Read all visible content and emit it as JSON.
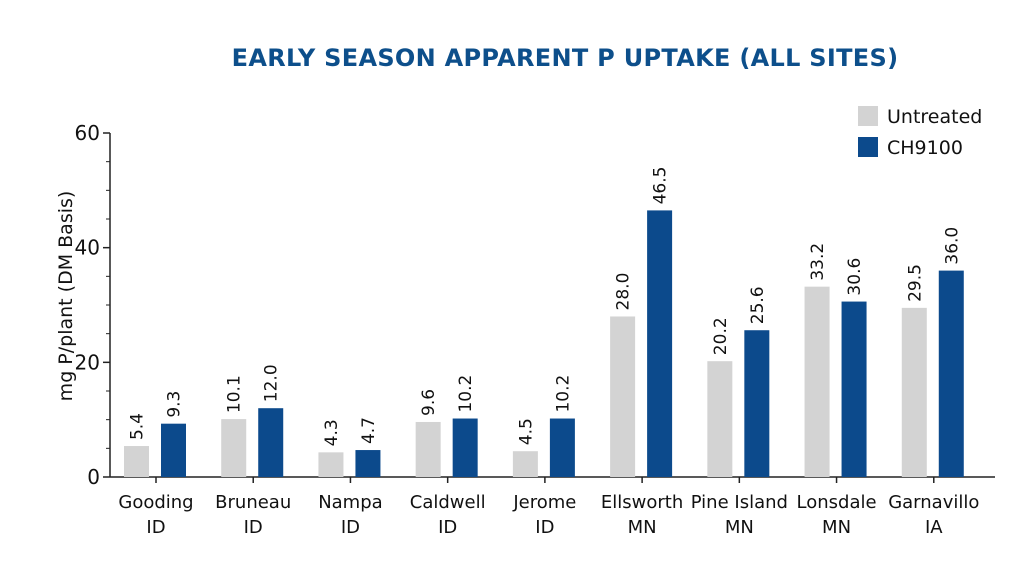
{
  "chart_data": {
    "type": "bar",
    "title": "EARLY SEASON APPARENT P UPTAKE (ALL SITES)",
    "xlabel": "",
    "ylabel": "mg P/plant (DM Basis)",
    "ylim": [
      0,
      60
    ],
    "yticks": [
      0,
      20,
      40,
      60
    ],
    "grid": false,
    "legend_position": "top-right",
    "categories": [
      [
        "Gooding",
        "ID"
      ],
      [
        "Bruneau",
        "ID"
      ],
      [
        "Nampa",
        "ID"
      ],
      [
        "Caldwell",
        "ID"
      ],
      [
        "Jerome",
        "ID"
      ],
      [
        "Ellsworth",
        "MN"
      ],
      [
        "Pine Island",
        "MN"
      ],
      [
        "Lonsdale",
        "MN"
      ],
      [
        "Garnavillo",
        "IA"
      ]
    ],
    "series": [
      {
        "name": "Untreated",
        "color": "#d3d3d3",
        "values": [
          5.4,
          10.1,
          4.3,
          9.6,
          4.5,
          28.0,
          20.2,
          33.2,
          29.5
        ],
        "labels": [
          "5.4",
          "10.1",
          "4.3",
          "9.6",
          "4.5",
          "28.0",
          "20.2",
          "33.2",
          "29.5"
        ]
      },
      {
        "name": "CH9100",
        "color": "#0c4a8c",
        "values": [
          9.3,
          12.0,
          4.7,
          10.2,
          10.2,
          46.5,
          25.6,
          30.6,
          36.0
        ],
        "labels": [
          "9.3",
          "12.0",
          "4.7",
          "10.2",
          "10.2",
          "46.5",
          "25.6",
          "30.6",
          "36.0"
        ]
      }
    ]
  }
}
